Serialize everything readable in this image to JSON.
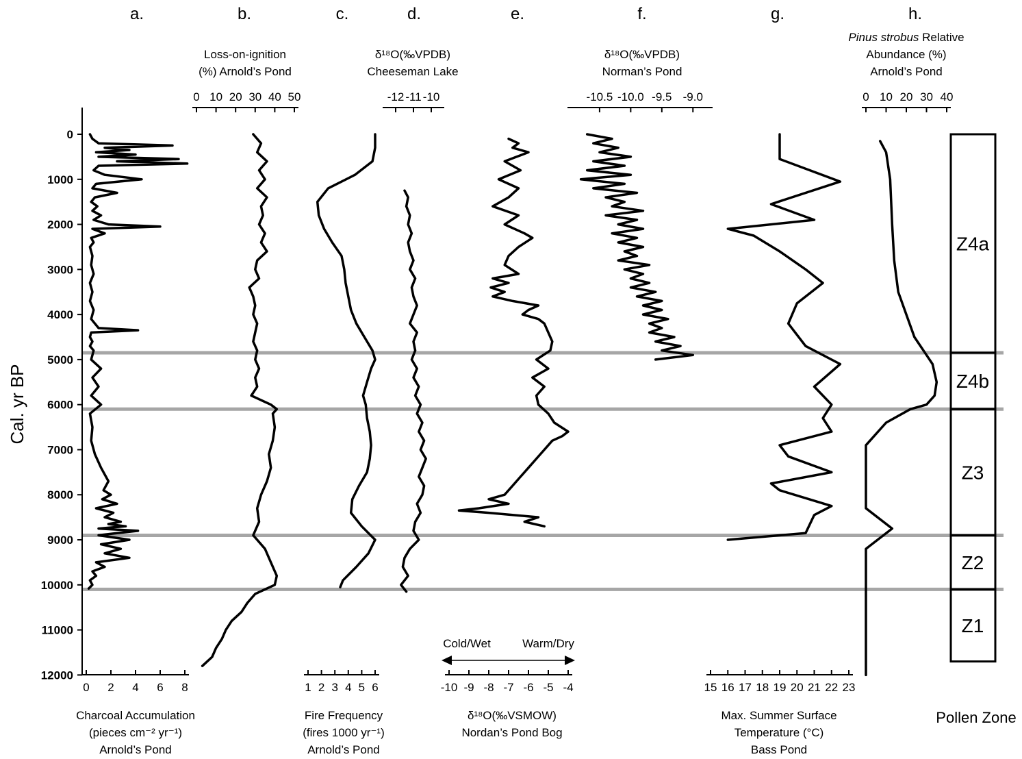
{
  "chart_data": {
    "type": "line",
    "y_axis": {
      "label": "Cal. yr BP",
      "ticks": [
        0,
        1000,
        2000,
        3000,
        4000,
        5000,
        6000,
        7000,
        8000,
        9000,
        10000,
        11000,
        12000
      ],
      "range": [
        0,
        12000
      ],
      "reversed": true
    },
    "panels": [
      {
        "letter": "a.",
        "title_top": [],
        "title_bottom": [
          "Charcoal Accumulation",
          "(pieces cm⁻² yr⁻¹)",
          "Arnold’s Pond"
        ],
        "axis_position": "bottom",
        "xticks": [
          0,
          2,
          4,
          6,
          8
        ],
        "xrange": [
          0,
          8
        ],
        "series": {
          "age": [
            0,
            100,
            200,
            250,
            300,
            350,
            400,
            450,
            500,
            550,
            600,
            650,
            700,
            800,
            900,
            1000,
            1100,
            1200,
            1300,
            1400,
            1500,
            1600,
            1700,
            1800,
            1900,
            2000,
            2050,
            2100,
            2200,
            2300,
            2400,
            2500,
            2700,
            2900,
            3100,
            3300,
            3500,
            3700,
            3900,
            4100,
            4300,
            4350,
            4400,
            4500,
            4600,
            4700,
            4800,
            5000,
            5200,
            5400,
            5600,
            5800,
            6000,
            6200,
            6500,
            6800,
            7100,
            7400,
            7700,
            7900,
            8000,
            8100,
            8200,
            8300,
            8400,
            8500,
            8600,
            8650,
            8700,
            8750,
            8800,
            8850,
            8900,
            9000,
            9100,
            9200,
            9300,
            9400,
            9500,
            9600,
            9700,
            9800,
            9900,
            10000,
            10080
          ],
          "value": [
            0.3,
            0.5,
            1.0,
            7.0,
            1.5,
            3.5,
            0.8,
            4.0,
            1.0,
            7.5,
            2.5,
            8.2,
            1.0,
            0.6,
            1.5,
            4.5,
            0.8,
            0.5,
            2.5,
            0.7,
            0.4,
            0.9,
            0.5,
            1.2,
            0.6,
            1.8,
            6.0,
            0.5,
            1.5,
            0.4,
            0.6,
            0.3,
            0.5,
            0.4,
            0.6,
            0.3,
            0.5,
            0.3,
            0.6,
            0.4,
            1.0,
            4.2,
            0.4,
            0.3,
            0.5,
            0.3,
            0.6,
            0.4,
            1.2,
            0.5,
            1.0,
            0.4,
            1.2,
            0.3,
            0.5,
            0.4,
            0.7,
            1.2,
            1.8,
            1.4,
            2.0,
            1.3,
            2.5,
            0.8,
            2.2,
            1.5,
            2.8,
            1.8,
            3.2,
            1.0,
            4.2,
            2.5,
            1.0,
            3.5,
            1.2,
            2.8,
            1.5,
            3.5,
            0.8,
            1.5,
            0.5,
            0.8,
            0.3,
            0.5,
            0.2
          ]
        }
      },
      {
        "letter": "b.",
        "title_top": [
          "Loss-on-ignition",
          "(%) Arnold’s Pond"
        ],
        "title_bottom": [],
        "axis_position": "top",
        "xticks": [
          0,
          10,
          20,
          30,
          40,
          50
        ],
        "xrange": [
          0,
          50
        ],
        "series": {
          "age": [
            0,
            200,
            400,
            600,
            800,
            1000,
            1200,
            1400,
            1600,
            1800,
            2000,
            2200,
            2400,
            2600,
            2800,
            3000,
            3200,
            3400,
            3600,
            3800,
            4000,
            4200,
            4400,
            4600,
            4800,
            5000,
            5200,
            5400,
            5600,
            5800,
            6000,
            6100,
            6200,
            6500,
            6800,
            7100,
            7400,
            7700,
            8000,
            8300,
            8600,
            8900,
            9200,
            9500,
            9800,
            10000,
            10200,
            10400,
            10600,
            10800,
            11000,
            11200,
            11400,
            11600,
            11800
          ],
          "value": [
            29,
            33,
            31,
            36,
            32,
            35,
            31,
            36,
            33,
            34,
            32,
            35,
            33,
            36,
            31,
            30,
            32,
            27,
            29,
            30,
            29,
            31,
            30,
            29,
            31,
            30,
            32,
            30,
            31,
            28,
            38,
            41,
            39,
            40,
            39,
            37,
            38,
            36,
            33,
            31,
            32,
            29,
            35,
            38,
            41,
            40,
            30,
            26,
            23,
            18,
            15,
            13,
            10,
            8,
            3
          ]
        }
      },
      {
        "letter": "c.",
        "title_top": [],
        "title_bottom": [
          "Fire Frequency",
          "(fires 1000 yr⁻¹)",
          "Arnold’s Pond"
        ],
        "axis_position": "bottom",
        "xticks": [
          1,
          2,
          3,
          4,
          5,
          6
        ],
        "xrange": [
          1,
          6
        ],
        "series": {
          "age": [
            0,
            300,
            600,
            900,
            1200,
            1500,
            1800,
            2100,
            2400,
            2700,
            3000,
            3300,
            3600,
            3900,
            4200,
            4500,
            4800,
            5000,
            5200,
            5500,
            5800,
            6000,
            6300,
            6600,
            6900,
            7200,
            7500,
            7800,
            8100,
            8400,
            8700,
            9000,
            9300,
            9600,
            9900,
            10050
          ],
          "value": [
            6.0,
            6.0,
            5.8,
            4.5,
            2.5,
            1.7,
            1.8,
            2.2,
            2.8,
            3.5,
            3.7,
            3.8,
            4.0,
            4.2,
            4.6,
            5.2,
            5.8,
            6.0,
            5.7,
            5.4,
            5.1,
            5.3,
            5.4,
            5.6,
            5.7,
            5.6,
            5.4,
            4.8,
            4.3,
            4.2,
            5.0,
            6.0,
            5.5,
            4.6,
            3.6,
            3.4
          ]
        }
      },
      {
        "letter": "d.",
        "title_top": [
          "δ¹⁸O(‰VPDB)",
          "Cheeseman Lake"
        ],
        "title_bottom": [],
        "axis_position": "top",
        "xticks": [
          -12,
          -11,
          -10
        ],
        "xrange": [
          -12.5,
          -9.5
        ],
        "series": {
          "age": [
            1250,
            1400,
            1600,
            1800,
            2000,
            2200,
            2400,
            2600,
            2800,
            3000,
            3200,
            3400,
            3600,
            3800,
            4000,
            4200,
            4400,
            4600,
            4800,
            5000,
            5200,
            5400,
            5600,
            5800,
            6000,
            6200,
            6400,
            6600,
            6800,
            7000,
            7200,
            7400,
            7600,
            7800,
            8000,
            8200,
            8400,
            8600,
            8800,
            9000,
            9200,
            9400,
            9600,
            9800,
            10000,
            10150
          ],
          "value": [
            -11.5,
            -11.3,
            -11.4,
            -11.2,
            -11.3,
            -11.1,
            -11.3,
            -11.2,
            -11.0,
            -11.2,
            -10.9,
            -11.1,
            -11.0,
            -10.8,
            -11.0,
            -11.2,
            -10.8,
            -11.0,
            -10.9,
            -11.1,
            -10.8,
            -11.0,
            -10.7,
            -10.9,
            -10.6,
            -10.8,
            -10.5,
            -10.7,
            -10.4,
            -10.6,
            -10.3,
            -10.5,
            -10.7,
            -10.4,
            -10.5,
            -10.8,
            -10.6,
            -10.9,
            -11.0,
            -10.7,
            -11.2,
            -11.5,
            -11.6,
            -11.3,
            -11.7,
            -11.4
          ]
        }
      },
      {
        "letter": "e.",
        "title_top": [],
        "title_bottom": [
          "δ¹⁸O(‰VSMOW)",
          "Nordan’s Pond Bog"
        ],
        "axis_position": "bottom",
        "xticks": [
          -10,
          -9,
          -8,
          -7,
          -6,
          -5,
          -4
        ],
        "xrange": [
          -10,
          -4
        ],
        "series": {
          "age": [
            100,
            200,
            300,
            400,
            500,
            600,
            700,
            800,
            1000,
            1200,
            1400,
            1600,
            1800,
            2000,
            2200,
            2300,
            2500,
            2700,
            2900,
            3100,
            3200,
            3300,
            3400,
            3500,
            3600,
            3700,
            3800,
            3900,
            4000,
            4100,
            4200,
            4400,
            4600,
            4800,
            5000,
            5200,
            5400,
            5600,
            5800,
            6000,
            6200,
            6400,
            6600,
            6700,
            6800,
            7000,
            7200,
            7400,
            7600,
            7800,
            8000,
            8100,
            8200,
            8300,
            8350,
            8400,
            8500,
            8600,
            8700
          ],
          "value": [
            -7.0,
            -6.5,
            -6.8,
            -6.0,
            -6.6,
            -7.2,
            -6.8,
            -6.4,
            -7.5,
            -6.5,
            -7.0,
            -7.8,
            -6.5,
            -7.2,
            -6.2,
            -5.8,
            -6.5,
            -7.0,
            -7.2,
            -6.5,
            -7.8,
            -7.0,
            -7.9,
            -7.2,
            -7.8,
            -6.8,
            -5.5,
            -6.0,
            -6.3,
            -5.5,
            -5.2,
            -5.0,
            -4.8,
            -4.9,
            -5.6,
            -5.0,
            -5.8,
            -5.2,
            -5.6,
            -5.5,
            -5.0,
            -4.7,
            -4.0,
            -4.3,
            -4.8,
            -5.2,
            -5.6,
            -6.0,
            -6.4,
            -6.8,
            -7.2,
            -8.0,
            -7.0,
            -8.5,
            -9.5,
            -8.0,
            -5.5,
            -6.2,
            -5.2
          ]
        }
      },
      {
        "letter": "f.",
        "title_top": [
          "δ¹⁸O(‰VPDB)",
          "Norman’s Pond"
        ],
        "title_bottom": [],
        "axis_position": "top",
        "xticks": [
          -10.5,
          -10.0,
          -9.5,
          -9.0
        ],
        "xticklabels": [
          "-10.5",
          "-10.0",
          "-9.5",
          "-9.0"
        ],
        "xrange": [
          -10.95,
          -8.75
        ],
        "series": {
          "age": [
            0,
            100,
            200,
            300,
            400,
            500,
            600,
            700,
            800,
            900,
            1000,
            1100,
            1200,
            1300,
            1400,
            1500,
            1600,
            1700,
            1800,
            1900,
            2000,
            2100,
            2200,
            2300,
            2400,
            2500,
            2600,
            2700,
            2800,
            2900,
            3000,
            3100,
            3200,
            3300,
            3400,
            3500,
            3600,
            3700,
            3800,
            3900,
            4000,
            4100,
            4200,
            4300,
            4400,
            4500,
            4600,
            4700,
            4800,
            4900,
            5000
          ],
          "value": [
            -10.7,
            -10.3,
            -10.6,
            -10.2,
            -10.5,
            -10.0,
            -10.6,
            -10.1,
            -10.7,
            -10.0,
            -10.8,
            -10.1,
            -10.6,
            -9.9,
            -10.4,
            -10.1,
            -10.3,
            -9.8,
            -10.4,
            -9.9,
            -10.2,
            -9.8,
            -10.3,
            -9.9,
            -10.2,
            -9.8,
            -10.1,
            -9.9,
            -10.2,
            -9.7,
            -10.1,
            -9.8,
            -10.0,
            -9.7,
            -10.0,
            -9.6,
            -9.9,
            -9.5,
            -9.8,
            -9.5,
            -9.8,
            -9.4,
            -9.7,
            -9.5,
            -9.7,
            -9.3,
            -9.6,
            -9.2,
            -9.5,
            -9.0,
            -9.6
          ]
        }
      },
      {
        "letter": "g.",
        "title_top": [],
        "title_bottom": [
          "Max. Summer Surface",
          "Temperature (°C)",
          "Bass Pond"
        ],
        "axis_position": "bottom",
        "xticks": [
          15,
          16,
          17,
          18,
          19,
          20,
          21,
          22,
          23
        ],
        "xticklabels": [
          "15",
          "16",
          "17",
          "18",
          "19",
          "20",
          "21",
          "22",
          "23"
        ],
        "xrange": [
          15,
          23
        ],
        "series": {
          "age": [
            0,
            550,
            1050,
            1550,
            1900,
            2100,
            2250,
            2600,
            3000,
            3300,
            3750,
            4200,
            4700,
            5100,
            5600,
            6000,
            6300,
            6600,
            6900,
            7150,
            7500,
            7750,
            7900,
            8250,
            8450,
            8850,
            9000
          ],
          "value": [
            19.0,
            19.0,
            22.5,
            18.5,
            21.0,
            16.0,
            17.5,
            19.0,
            20.5,
            21.5,
            20.0,
            19.5,
            20.5,
            22.5,
            21.0,
            22.0,
            21.5,
            22.0,
            19.0,
            19.5,
            22.0,
            18.5,
            19.0,
            22.0,
            21.0,
            20.5,
            16.0
          ]
        }
      },
      {
        "letter": "h.",
        "title_top": [
          "Pinus strobus Relative",
          "Abundance (%)",
          "Arnold’s Pond"
        ],
        "title_top_italic": "Pinus strobus",
        "title_bottom": [],
        "axis_position": "top",
        "xticks": [
          0,
          10,
          20,
          30,
          40
        ],
        "xrange": [
          0,
          40
        ],
        "series": {
          "age": [
            150,
            400,
            1000,
            2000,
            2800,
            3500,
            4000,
            4500,
            4900,
            5100,
            5500,
            5800,
            6000,
            6100,
            6400,
            6900,
            8300,
            8750,
            9200,
            12000
          ],
          "value": [
            7,
            10,
            12,
            13,
            14,
            16,
            20,
            24,
            30,
            33,
            35,
            34,
            30,
            22,
            10,
            0,
            0,
            13,
            0,
            0
          ]
        }
      }
    ],
    "zone_boundaries": [
      4850,
      6100,
      8900,
      10100
    ],
    "pollen_zone": {
      "label": "Pollen Zone",
      "zones": [
        {
          "name": "Z4a",
          "top": 0,
          "bottom": 4850
        },
        {
          "name": "Z4b",
          "top": 4850,
          "bottom": 6100
        },
        {
          "name": "Z3",
          "top": 6100,
          "bottom": 8900
        },
        {
          "name": "Z2",
          "top": 8900,
          "bottom": 10100
        },
        {
          "name": "Z1",
          "top": 10100,
          "bottom": 11700
        }
      ]
    },
    "annotation": {
      "left": "Cold/Wet",
      "right": "Warm/Dry"
    }
  }
}
